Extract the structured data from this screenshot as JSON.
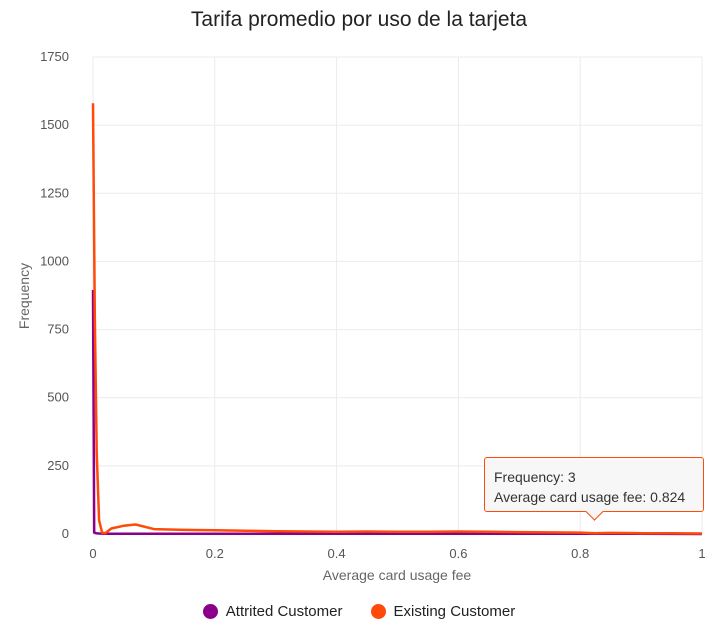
{
  "chart_data": {
    "type": "line",
    "title": "Tarifa promedio por uso de la tarjeta",
    "xlabel": "Average card usage fee",
    "ylabel": "Frequency",
    "xlim": [
      0,
      1
    ],
    "ylim": [
      0,
      1750
    ],
    "xticks": [
      "0",
      "0.2",
      "0.4",
      "0.6",
      "0.8",
      "1"
    ],
    "yticks": [
      "0",
      "250",
      "500",
      "750",
      "1000",
      "1250",
      "1500",
      "1750"
    ],
    "grid": true,
    "legend": "bottom",
    "series": [
      {
        "name": "Attrited Customer",
        "color": "#8b008b",
        "x": [
          0,
          0.002,
          0.005,
          0.01,
          0.02,
          0.05,
          0.1,
          0.2,
          0.3,
          0.4,
          0.5,
          0.6,
          0.7,
          0.8,
          0.9,
          1.0
        ],
        "y": [
          895,
          5,
          3,
          2,
          1,
          1,
          1,
          1,
          1,
          1,
          1,
          1,
          1,
          1,
          1,
          0
        ]
      },
      {
        "name": "Existing Customer",
        "color": "#ff4a0a",
        "x": [
          0,
          0.003,
          0.006,
          0.01,
          0.015,
          0.02,
          0.03,
          0.05,
          0.07,
          0.1,
          0.15,
          0.2,
          0.25,
          0.3,
          0.35,
          0.4,
          0.45,
          0.5,
          0.55,
          0.6,
          0.65,
          0.7,
          0.75,
          0.8,
          0.824,
          0.85,
          0.9,
          0.95,
          1.0
        ],
        "y": [
          1580,
          800,
          300,
          50,
          5,
          3,
          20,
          30,
          35,
          18,
          15,
          14,
          12,
          10,
          9,
          8,
          9,
          8,
          8,
          9,
          8,
          7,
          6,
          5,
          3,
          4,
          3,
          3,
          2
        ]
      }
    ]
  },
  "tooltip": {
    "line1": "Frequency: 3",
    "line2": "Average card usage fee: 0.824"
  }
}
